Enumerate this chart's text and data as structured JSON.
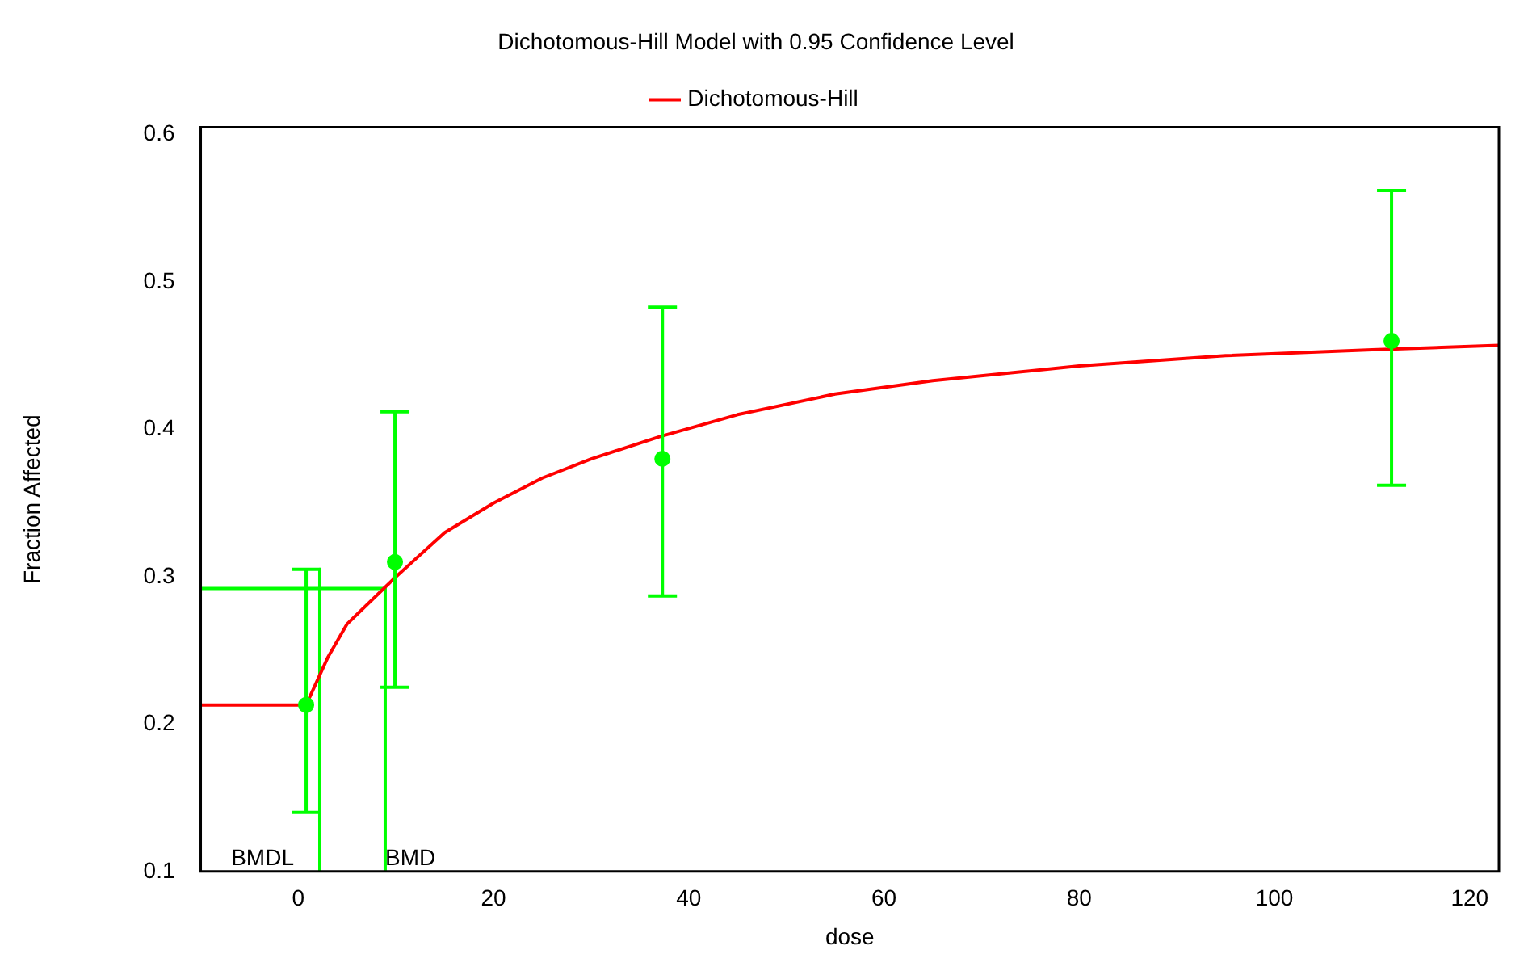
{
  "chart_data": {
    "type": "line",
    "title": "Dichotomous-Hill Model with 0.95 Confidence Level",
    "xlabel": "dose",
    "ylabel": "Fraction Affected",
    "xlim": [
      -10,
      123
    ],
    "ylim": [
      0.1,
      0.605
    ],
    "xticks": [
      0,
      20,
      40,
      60,
      80,
      100,
      120
    ],
    "yticks": [
      0.1,
      0.2,
      0.3,
      0.4,
      0.5,
      0.6
    ],
    "grid": false,
    "legend": "top",
    "line_style": "solid",
    "series": [
      {
        "name": "Dichotomous-Hill",
        "color": "#ff0000",
        "marker": "none",
        "x": [
          -10,
          0.8,
          3,
          5,
          10,
          15,
          20,
          25,
          30,
          37,
          45,
          55,
          65,
          80,
          95,
          110,
          123
        ],
        "values": [
          0.213,
          0.213,
          0.245,
          0.268,
          0.3,
          0.33,
          0.35,
          0.367,
          0.38,
          0.395,
          0.41,
          0.424,
          0.433,
          0.443,
          0.45,
          0.454,
          0.457
        ]
      },
      {
        "type": "scatter",
        "color": "#00ff00",
        "marker": "circle",
        "x": [
          0.8,
          9.9,
          37.3,
          112
        ],
        "values": [
          0.213,
          0.31,
          0.38,
          0.46
        ],
        "errors": [
          [
            0.14,
            0.305
          ],
          [
            0.225,
            0.412
          ],
          [
            0.287,
            0.483
          ],
          [
            0.362,
            0.562
          ]
        ]
      },
      {
        "type": "line",
        "color": "#00ff00",
        "marker": "none",
        "x": [
          -10,
          8.9,
          8.9
        ],
        "values": [
          0.292,
          0.292,
          0.1
        ]
      },
      {
        "type": "line",
        "color": "#00ff00",
        "marker": "none",
        "x": [
          2.2,
          2.2
        ],
        "values": [
          0.305,
          0.1
        ]
      }
    ],
    "annotations": [
      {
        "text": "BMDL",
        "x": 2.2,
        "y": 0.1
      },
      {
        "text": "BMD",
        "x": 8.9,
        "y": 0.1
      }
    ]
  }
}
